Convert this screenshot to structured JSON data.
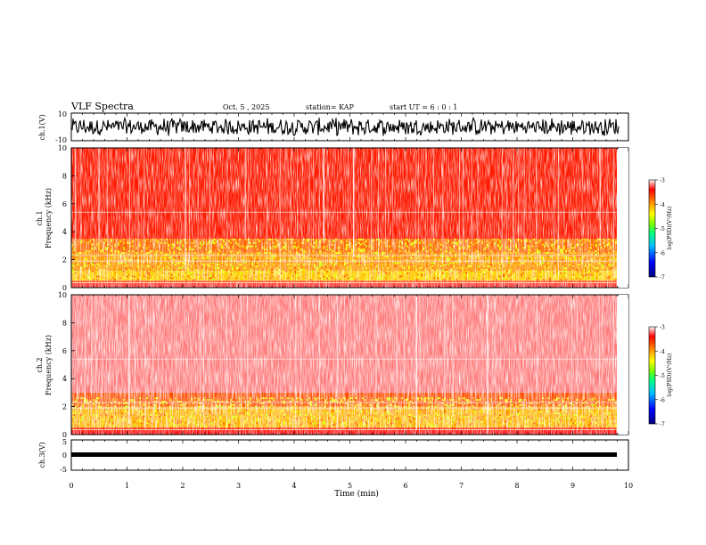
{
  "header": {
    "title": "VLF Spectra",
    "date": "Oct. 5 , 2025",
    "station": "station= KAP",
    "start": "start UT =  6 : 0 : 1"
  },
  "chart_data": [
    {
      "type": "line",
      "name": "ch1-waveform",
      "ylabel": "ch.1(V)",
      "ylim": [
        -10,
        10
      ],
      "tick_labels": [
        "10",
        "-10"
      ],
      "xlim": [
        0,
        10
      ],
      "data_xlim": [
        0,
        9.83
      ],
      "series": [
        {
          "name": "ch.1",
          "description": "noisy waveform spanning roughly -7 to 7 V"
        }
      ]
    },
    {
      "type": "heatmap",
      "name": "ch1-spectrogram",
      "ylabel": "ch.1\nFrequency (kHz)",
      "ylim": [
        0,
        10
      ],
      "yticks": [
        "0",
        "2",
        "4",
        "6",
        "8",
        "10"
      ],
      "xlim": [
        0,
        10
      ],
      "data_xlim": [
        0,
        9.83
      ],
      "colorbar": {
        "label": "log(PSD)(V²/Hz)",
        "range": [
          -7,
          -3
        ],
        "ticks": [
          "-3",
          "-4",
          "-5",
          "-6",
          "-7"
        ]
      },
      "bands": [
        {
          "freq_khz": [
            0.0,
            0.5
          ],
          "level": -3.3
        },
        {
          "freq_khz": [
            0.5,
            1.2
          ],
          "level": -4.2
        },
        {
          "freq_khz": [
            1.2,
            2.5
          ],
          "level": -4.0
        },
        {
          "freq_khz": [
            2.5,
            3.5
          ],
          "level": -3.8
        },
        {
          "freq_khz": [
            3.5,
            10.0
          ],
          "level": -3.5
        }
      ]
    },
    {
      "type": "heatmap",
      "name": "ch2-spectrogram",
      "ylabel": "ch.2\nFrequency (kHz)",
      "ylim": [
        0,
        10
      ],
      "yticks": [
        "0",
        "2",
        "4",
        "6",
        "8",
        "10"
      ],
      "xlim": [
        0,
        10
      ],
      "data_xlim": [
        0,
        9.83
      ],
      "colorbar": {
        "label": "log(PSD)(V²/Hz)",
        "range": [
          -7,
          -3
        ],
        "ticks": [
          "-3",
          "-4",
          "-5",
          "-6",
          "-7"
        ]
      },
      "bands": [
        {
          "freq_khz": [
            0.0,
            0.5
          ],
          "level": -3.4
        },
        {
          "freq_khz": [
            0.5,
            2.0
          ],
          "level": -4.1
        },
        {
          "freq_khz": [
            2.0,
            3.0
          ],
          "level": -3.7
        },
        {
          "freq_khz": [
            3.0,
            10.0
          ],
          "level": -3.2
        }
      ]
    },
    {
      "type": "line",
      "name": "ch3-waveform",
      "ylabel": "ch.3(V)",
      "ylim": [
        -5,
        5
      ],
      "tick_labels": [
        "5",
        "0",
        "-5"
      ],
      "xlim": [
        0,
        10
      ],
      "data_xlim": [
        0,
        9.83
      ],
      "series": [
        {
          "name": "ch.3",
          "description": "near-constant dense trace around -1.5 V"
        }
      ]
    }
  ],
  "xaxis": {
    "label": "Time (min)",
    "ticks": [
      "0",
      "1",
      "2",
      "3",
      "4",
      "5",
      "6",
      "7",
      "8",
      "9",
      "10"
    ]
  }
}
